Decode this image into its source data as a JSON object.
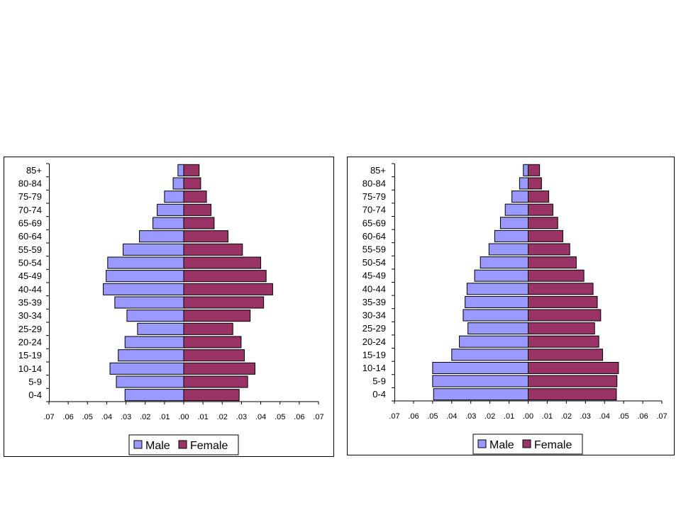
{
  "chart_data": [
    {
      "type": "bar",
      "orientation": "horizontal",
      "categories": [
        "85+",
        "80-84",
        "75-79",
        "70-74",
        "65-69",
        "60-64",
        "55-59",
        "50-54",
        "45-49",
        "40-44",
        "35-39",
        "30-34",
        "25-29",
        "20-24",
        "15-19",
        "10-14",
        "5-9",
        "0-4"
      ],
      "series": [
        {
          "name": "Male",
          "color": "#9999ff",
          "values": [
            0.003,
            0.0055,
            0.01,
            0.0138,
            0.016,
            0.023,
            0.0315,
            0.0395,
            0.0403,
            0.0418,
            0.0358,
            0.0295,
            0.024,
            0.0305,
            0.034,
            0.0383,
            0.035,
            0.0305
          ]
        },
        {
          "name": "Female",
          "color": "#993366",
          "values": [
            0.008,
            0.0088,
            0.0118,
            0.0142,
            0.0158,
            0.023,
            0.0305,
            0.04,
            0.0428,
            0.0462,
            0.0415,
            0.0345,
            0.0255,
            0.0298,
            0.0315,
            0.037,
            0.0332,
            0.0288
          ]
        }
      ],
      "xticks": [
        ".07",
        ".06",
        ".05",
        ".04",
        ".03",
        ".02",
        ".01",
        ".00",
        ".01",
        ".02",
        ".03",
        ".04",
        ".05",
        ".06",
        ".07"
      ],
      "xlim": [
        -0.07,
        0.07
      ],
      "title": "",
      "xlabel": "",
      "ylabel": "",
      "legend": "bottom"
    },
    {
      "type": "bar",
      "orientation": "horizontal",
      "categories": [
        "85+",
        "80-84",
        "75-79",
        "70-74",
        "65-69",
        "60-64",
        "55-59",
        "50-54",
        "45-49",
        "40-44",
        "35-39",
        "30-34",
        "25-29",
        "20-24",
        "15-19",
        "10-14",
        "5-9",
        "0-4"
      ],
      "series": [
        {
          "name": "Male",
          "color": "#9999ff",
          "values": [
            0.0025,
            0.0045,
            0.0085,
            0.012,
            0.0145,
            0.0175,
            0.0205,
            0.025,
            0.028,
            0.032,
            0.033,
            0.034,
            0.0315,
            0.036,
            0.04,
            0.05,
            0.05,
            0.0495
          ]
        },
        {
          "name": "Female",
          "color": "#993366",
          "values": [
            0.006,
            0.007,
            0.0108,
            0.013,
            0.0155,
            0.0182,
            0.0218,
            0.0252,
            0.0292,
            0.034,
            0.0362,
            0.038,
            0.0348,
            0.037,
            0.039,
            0.0473,
            0.0465,
            0.0462
          ]
        }
      ],
      "xticks": [
        ".07",
        ".06",
        ".05",
        ".04",
        ".03",
        ".02",
        ".01",
        ".00",
        ".01",
        ".02",
        ".03",
        ".04",
        ".05",
        ".06",
        ".07"
      ],
      "xlim": [
        -0.07,
        0.07
      ],
      "title": "",
      "xlabel": "",
      "ylabel": "",
      "legend": "bottom"
    }
  ]
}
